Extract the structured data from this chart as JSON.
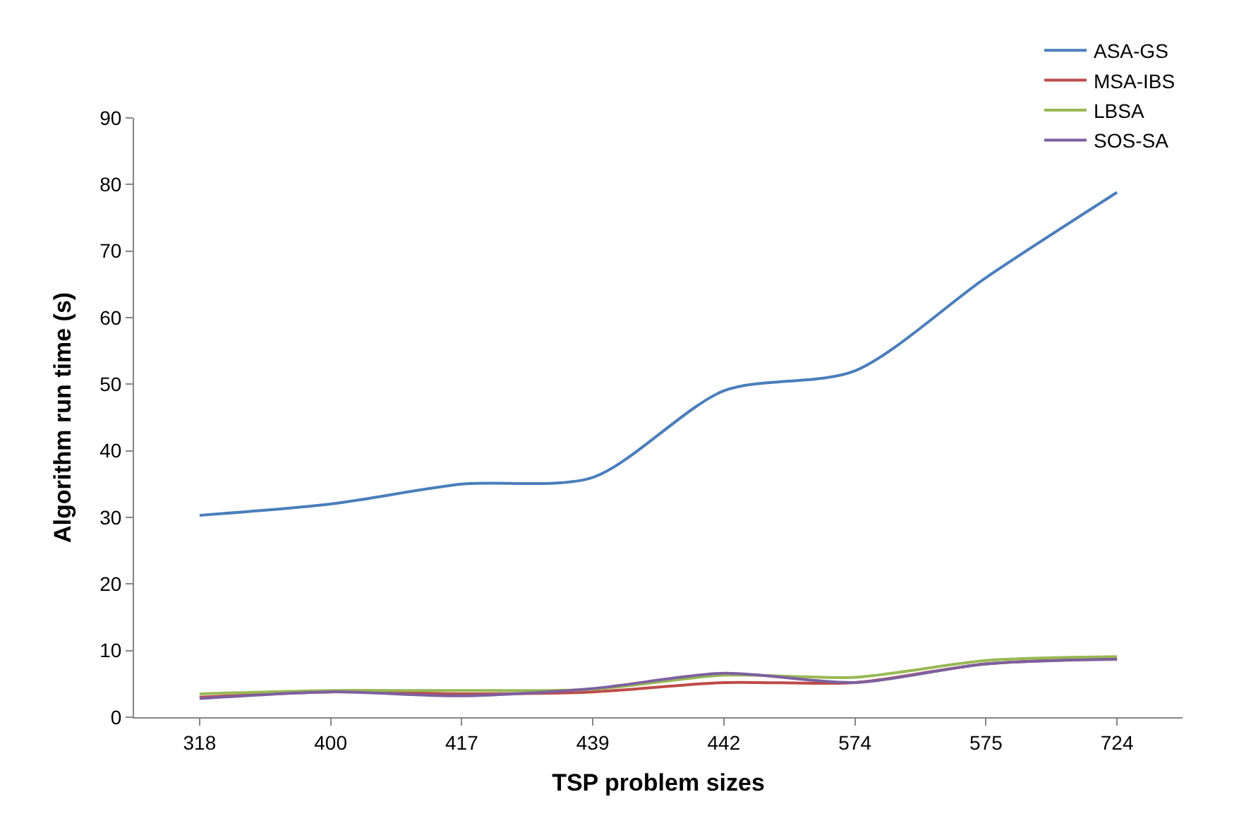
{
  "chart_data": {
    "type": "line",
    "xlabel": "TSP problem sizes",
    "ylabel": "Algorithm run time (s)",
    "categories": [
      "318",
      "400",
      "417",
      "439",
      "442",
      "574",
      "575",
      "724"
    ],
    "series": [
      {
        "name": "ASA-GS",
        "color": "#4a7ebb",
        "values": [
          30.3,
          32,
          35,
          36,
          49,
          52,
          66,
          78.8
        ]
      },
      {
        "name": "MSA-IBS",
        "color": "#be4b48",
        "values": [
          3,
          3.8,
          3.5,
          3.8,
          5.2,
          5.2,
          8,
          8.8
        ]
      },
      {
        "name": "LBSA",
        "color": "#98b954",
        "values": [
          3.5,
          4,
          4,
          4.2,
          6.3,
          6,
          8.5,
          9.1
        ]
      },
      {
        "name": "SOS-SA",
        "color": "#7d60a0",
        "values": [
          2.8,
          3.8,
          3.2,
          4.3,
          6.6,
          5.2,
          8,
          8.7
        ]
      }
    ],
    "ylim": [
      0,
      90
    ],
    "yticks": [
      0,
      10,
      20,
      30,
      40,
      50,
      60,
      70,
      80,
      90
    ],
    "grid": false,
    "legend": "top right",
    "marker": "none",
    "line_style": "solid"
  }
}
